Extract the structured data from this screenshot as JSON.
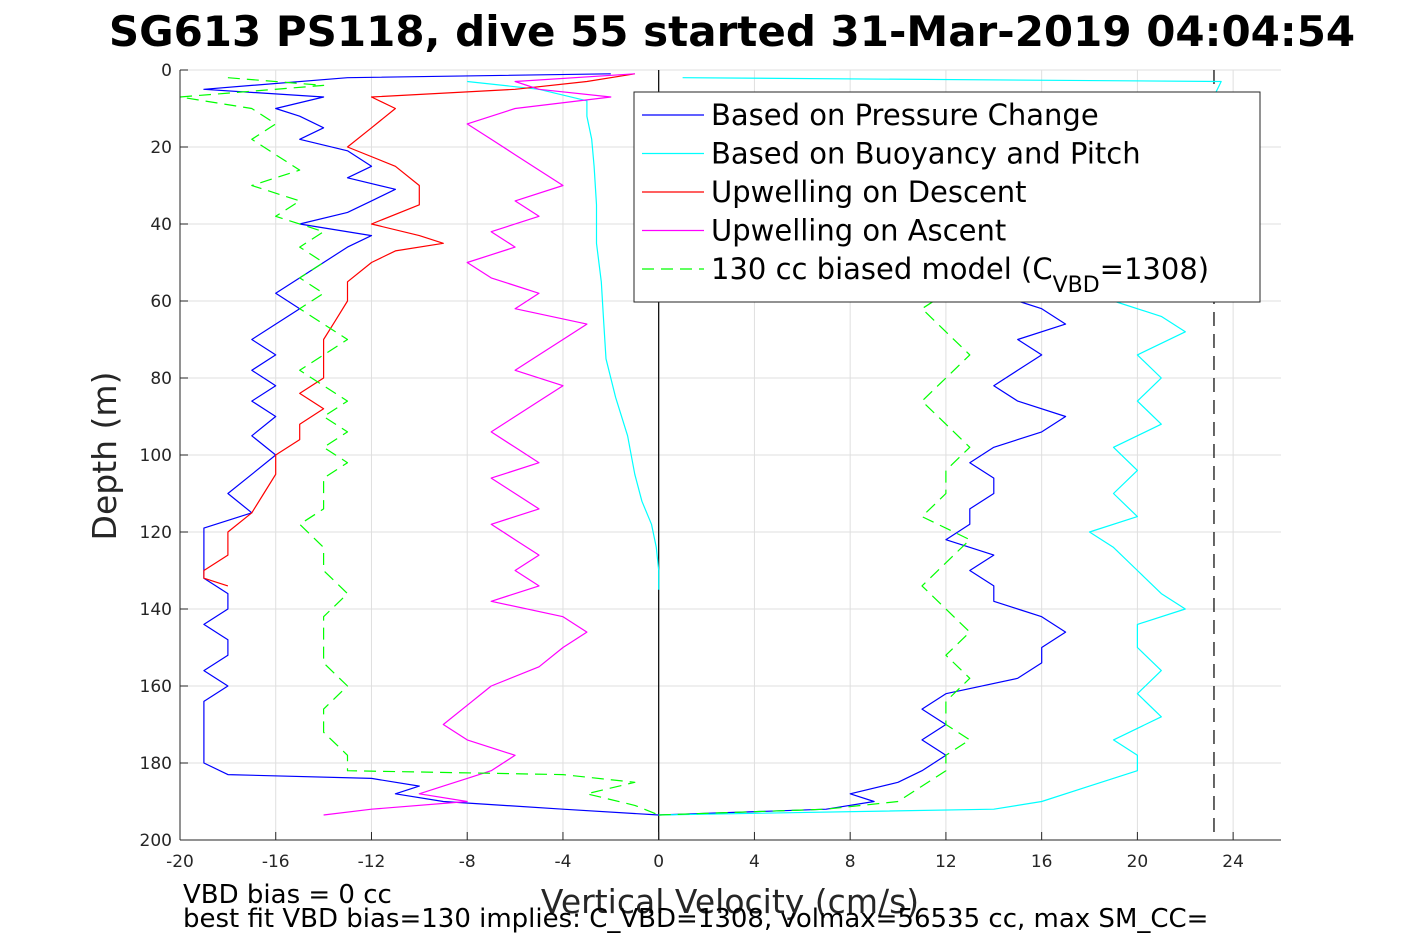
{
  "figure": {
    "title": "SG613 PS118, dive 55 started 31-Mar-2019 04:04:54",
    "footer_line1": "VBD bias = 0 cc",
    "footer_line2": "best fit VBD bias=130 implies: C_VBD=1308, volmax=56535 cc, max SM_CC="
  },
  "chart_data": {
    "type": "line",
    "title": "SG613 PS118, dive 55 started 31-Mar-2019 04:04:54",
    "xlabel": "Vertical Velocity (cm/s)",
    "ylabel": "Depth (m)",
    "xlim": [
      -20,
      26
    ],
    "ylim": [
      200,
      0
    ],
    "y_reversed": true,
    "grid": true,
    "legend_position": "top-right",
    "xticks": [
      -20,
      -16,
      -12,
      -8,
      -4,
      0,
      4,
      8,
      12,
      16,
      20,
      24
    ],
    "yticks": [
      0,
      20,
      40,
      60,
      80,
      100,
      120,
      140,
      160,
      180,
      200
    ],
    "vertical_lines": [
      {
        "x": 0,
        "style": "solid",
        "color": "#000000"
      },
      {
        "x": 23.2,
        "style": "dashed",
        "color": "#000000"
      }
    ],
    "series": [
      {
        "name": "Based on Pressure Change",
        "color": "#0000ff",
        "dash": "solid",
        "descent": {
          "depth": [
            1,
            2,
            4,
            5,
            7,
            10,
            12,
            15,
            18,
            21,
            25,
            28,
            31,
            34,
            37,
            40,
            43,
            46,
            50,
            54,
            58,
            62,
            66,
            70,
            74,
            78,
            82,
            86,
            90,
            95,
            100,
            105,
            110,
            115,
            119,
            124,
            128,
            132,
            136,
            140,
            144,
            148,
            152,
            156,
            160,
            164,
            168,
            172,
            176,
            180,
            183,
            184,
            186,
            188,
            190,
            192,
            193.5
          ],
          "velocity": [
            -2,
            -13,
            -17,
            -19,
            -14,
            -16,
            -15,
            -14,
            -15,
            -13,
            -12,
            -13,
            -11,
            -12,
            -13,
            -15,
            -12,
            -13,
            -14,
            -15,
            -16,
            -15,
            -16,
            -17,
            -16,
            -17,
            -16,
            -17,
            -16,
            -17,
            -16,
            -17,
            -18,
            -17,
            -19,
            -19,
            -19,
            -19,
            -18,
            -18,
            -19,
            -18,
            -18,
            -19,
            -18,
            -19,
            -19,
            -19,
            -19,
            -19,
            -18,
            -12,
            -10,
            -11,
            -9,
            -4,
            0
          ]
        },
        "ascent": {
          "depth": [
            193.5,
            192,
            190,
            188,
            185,
            182,
            178,
            174,
            170,
            166,
            162,
            158,
            154,
            150,
            146,
            142,
            138,
            134,
            130,
            126,
            122,
            118,
            114,
            110,
            106,
            102,
            98,
            94,
            90,
            86,
            82,
            78,
            74,
            70,
            66,
            62,
            60
          ],
          "velocity": [
            0,
            7,
            9,
            8,
            10,
            11,
            12,
            11,
            12,
            11,
            12,
            15,
            16,
            16,
            17,
            16,
            14,
            14,
            13,
            14,
            12,
            13,
            13,
            14,
            14,
            13,
            14,
            16,
            17,
            15,
            14,
            15,
            16,
            15,
            17,
            16,
            15
          ]
        }
      },
      {
        "name": "Based on Buoyancy and Pitch",
        "color": "#00ffff",
        "dash": "solid",
        "descent": {
          "depth": [
            3,
            5,
            8,
            12,
            18,
            25,
            35,
            45,
            55,
            65,
            75,
            85,
            95,
            105,
            112,
            118,
            124,
            130,
            135
          ],
          "velocity": [
            -8,
            -5,
            -3,
            -3,
            -2.8,
            -2.7,
            -2.6,
            -2.6,
            -2.4,
            -2.3,
            -2.2,
            -1.8,
            -1.3,
            -1.0,
            -0.7,
            -0.3,
            -0.1,
            0,
            0
          ]
        },
        "ascent": {
          "depth": [
            193.5,
            192,
            190,
            186,
            182,
            178,
            174,
            168,
            162,
            156,
            150,
            144,
            140,
            136,
            130,
            124,
            120,
            116,
            110,
            104,
            98,
            92,
            86,
            80,
            74,
            68,
            64,
            60,
            3,
            2
          ],
          "velocity": [
            0,
            14,
            16,
            18,
            20,
            20,
            19,
            21,
            20,
            21,
            20,
            20,
            22,
            21,
            20,
            19,
            18,
            20,
            19,
            20,
            19,
            21,
            20,
            21,
            20,
            22,
            21,
            19,
            23.5,
            1
          ]
        }
      },
      {
        "name": "Upwelling on Descent",
        "color": "#ff0000",
        "dash": "solid",
        "descent": {
          "depth": [
            1,
            3,
            5,
            7,
            10,
            15,
            20,
            25,
            30,
            35,
            40,
            43,
            45,
            47,
            50,
            55,
            60,
            65,
            70,
            75,
            80,
            84,
            88,
            92,
            96,
            100,
            105,
            110,
            115,
            120,
            126,
            130,
            132,
            134
          ],
          "velocity": [
            -1,
            -3,
            -6,
            -12,
            -11,
            -12,
            -13,
            -11,
            -10,
            -10,
            -12,
            -10,
            -9,
            -11,
            -12,
            -13,
            -13,
            -13.5,
            -14,
            -14,
            -14,
            -15,
            -14,
            -15,
            -15,
            -16,
            -16,
            -16.5,
            -17,
            -18,
            -18,
            -19,
            -19,
            -18
          ]
        }
      },
      {
        "name": "Upwelling on Ascent",
        "color": "#ff00ff",
        "dash": "solid",
        "ascent": {
          "depth": [
            193.5,
            192,
            190,
            188,
            186,
            184,
            182,
            178,
            174,
            170,
            165,
            160,
            155,
            150,
            146,
            142,
            138,
            134,
            130,
            126,
            122,
            118,
            114,
            110,
            106,
            102,
            98,
            94,
            90,
            86,
            82,
            78,
            74,
            70,
            66,
            62,
            58,
            54,
            50,
            46,
            42,
            38,
            34,
            30,
            26,
            22,
            18,
            14,
            10,
            7,
            5,
            3,
            1
          ],
          "velocity": [
            -14,
            -12,
            -8,
            -10,
            -9,
            -8,
            -7,
            -6,
            -8,
            -9,
            -8,
            -7,
            -5,
            -4,
            -3,
            -4,
            -7,
            -5,
            -6,
            -5,
            -6,
            -7,
            -5,
            -6,
            -7,
            -5,
            -6,
            -7,
            -6,
            -5,
            -4,
            -6,
            -5,
            -4,
            -3,
            -6,
            -5,
            -7,
            -8,
            -6,
            -7,
            -5,
            -6,
            -4,
            -5,
            -6,
            -7,
            -8,
            -6,
            -2,
            -5,
            -6,
            -1
          ]
        }
      },
      {
        "name": "130 cc biased model (C_VBD=1308)",
        "color": "#00ff00",
        "dash": "dashed",
        "descent": {
          "depth": [
            2,
            4,
            7,
            10,
            14,
            18,
            22,
            26,
            30,
            34,
            38,
            42,
            46,
            50,
            54,
            58,
            62,
            66,
            70,
            74,
            78,
            82,
            86,
            90,
            94,
            98,
            102,
            106,
            110,
            114,
            118,
            124,
            130,
            136,
            142,
            148,
            154,
            160,
            166,
            172,
            178,
            182,
            183,
            185,
            188,
            191,
            193.5
          ],
          "velocity": [
            -18,
            -14,
            -20,
            -17,
            -16,
            -17,
            -16,
            -15,
            -17,
            -15,
            -16,
            -14,
            -15,
            -14,
            -15,
            -14,
            -15,
            -14,
            -13,
            -14,
            -15,
            -14,
            -13,
            -14,
            -13,
            -14,
            -13,
            -14,
            -14,
            -14,
            -15,
            -14,
            -14,
            -13,
            -14,
            -14,
            -14,
            -13,
            -14,
            -14,
            -13,
            -13,
            -4,
            -1,
            -3,
            -1,
            0
          ]
        },
        "ascent": {
          "depth": [
            193.5,
            192,
            190,
            186,
            182,
            178,
            174,
            170,
            164,
            158,
            152,
            146,
            140,
            134,
            128,
            122,
            116,
            110,
            104,
            98,
            92,
            86,
            80,
            74,
            68,
            62,
            58
          ],
          "velocity": [
            0,
            7,
            10,
            11,
            12,
            12,
            13,
            12,
            12,
            13,
            12,
            13,
            12,
            11,
            12,
            13,
            11,
            12,
            12,
            13,
            12,
            11,
            12,
            13,
            12,
            11,
            12
          ]
        }
      }
    ]
  }
}
